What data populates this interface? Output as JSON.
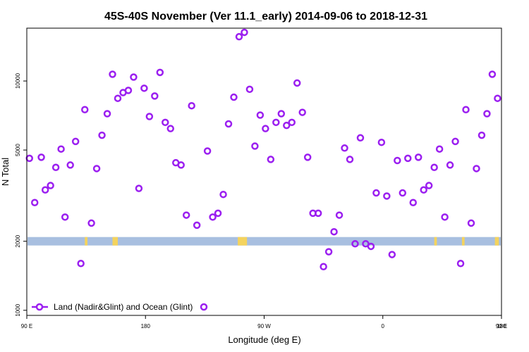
{
  "chart_data": {
    "type": "scatter",
    "title": "45S-40S November (Ver 11.1_early)   2014-09-06 to 2018-12-31",
    "xlabel": "Longitude (deg E)",
    "ylabel": "N Total",
    "x_tick_labels": [
      "90 E",
      "180",
      "90 W",
      "0",
      "90 E",
      "180"
    ],
    "y_tick_labels": [
      "1000",
      "2000",
      "5000",
      "10000"
    ],
    "y_scale": "log",
    "xlim": [
      90,
      450
    ],
    "ylim": [
      950,
      17000
    ],
    "marker_color": "#9b1ff0",
    "band_color": "#a8bfe0",
    "band_highlight_color": "#f4d35e",
    "series": [
      {
        "name": "Land (Nadir&Glint) and Ocean (Glint)",
        "points": [
          [
            92,
            4600
          ],
          [
            96,
            2950
          ],
          [
            101,
            4650
          ],
          [
            104,
            3350
          ],
          [
            108,
            3500
          ],
          [
            112,
            4200
          ],
          [
            116,
            5050
          ],
          [
            119,
            2550
          ],
          [
            123,
            4300
          ],
          [
            127,
            5450
          ],
          [
            131,
            1600
          ],
          [
            134,
            7500
          ],
          [
            139,
            2400
          ],
          [
            143,
            4150
          ],
          [
            147,
            5800
          ],
          [
            151,
            7200
          ],
          [
            155,
            10700
          ],
          [
            159,
            8400
          ],
          [
            163,
            8900
          ],
          [
            167,
            9100
          ],
          [
            171,
            10400
          ],
          [
            175,
            3400
          ],
          [
            179,
            9300
          ],
          [
            183,
            7000
          ],
          [
            187,
            8600
          ],
          [
            191,
            10900
          ],
          [
            195,
            6600
          ],
          [
            199,
            6200
          ],
          [
            203,
            4400
          ],
          [
            207,
            4300
          ],
          [
            211,
            2600
          ],
          [
            215,
            7800
          ],
          [
            219,
            2350
          ],
          [
            227,
            4950
          ],
          [
            231,
            2550
          ],
          [
            235,
            2650
          ],
          [
            239,
            3200
          ],
          [
            243,
            6500
          ],
          [
            247,
            8500
          ],
          [
            251,
            15600
          ],
          [
            255,
            16300
          ],
          [
            259,
            9200
          ],
          [
            263,
            5200
          ],
          [
            267,
            7100
          ],
          [
            271,
            6200
          ],
          [
            275,
            4550
          ],
          [
            279,
            6600
          ],
          [
            283,
            7200
          ],
          [
            287,
            6400
          ],
          [
            291,
            6600
          ],
          [
            295,
            9800
          ],
          [
            299,
            7300
          ],
          [
            303,
            4650
          ],
          [
            307,
            2650
          ],
          [
            311,
            2650
          ],
          [
            315,
            1550
          ],
          [
            319,
            1800
          ],
          [
            323,
            2200
          ],
          [
            327,
            2600
          ],
          [
            331,
            5100
          ],
          [
            335,
            4550
          ],
          [
            339,
            1950
          ],
          [
            343,
            5650
          ],
          [
            347,
            1950
          ],
          [
            351,
            1900
          ],
          [
            355,
            3250
          ],
          [
            359,
            5400
          ],
          [
            363,
            3150
          ],
          [
            367,
            1750
          ],
          [
            371,
            4500
          ],
          [
            375,
            3250
          ],
          [
            379,
            4600
          ],
          [
            383,
            2950
          ],
          [
            387,
            4650
          ],
          [
            391,
            3350
          ],
          [
            395,
            3500
          ],
          [
            399,
            4200
          ],
          [
            403,
            5050
          ],
          [
            407,
            2550
          ],
          [
            411,
            4300
          ],
          [
            415,
            5450
          ],
          [
            419,
            1600
          ],
          [
            423,
            7500
          ],
          [
            427,
            2400
          ],
          [
            431,
            4150
          ],
          [
            435,
            5800
          ],
          [
            439,
            7200
          ],
          [
            443,
            10700
          ],
          [
            447,
            8400
          ]
        ]
      }
    ],
    "band": {
      "y_center": 2000
    },
    "highlight_ranges": [
      [
        134,
        136
      ],
      [
        155,
        159
      ],
      [
        250,
        257
      ],
      [
        399,
        401
      ],
      [
        420,
        422
      ],
      [
        445,
        448
      ]
    ],
    "legend": {
      "position": "bottom-left"
    }
  }
}
